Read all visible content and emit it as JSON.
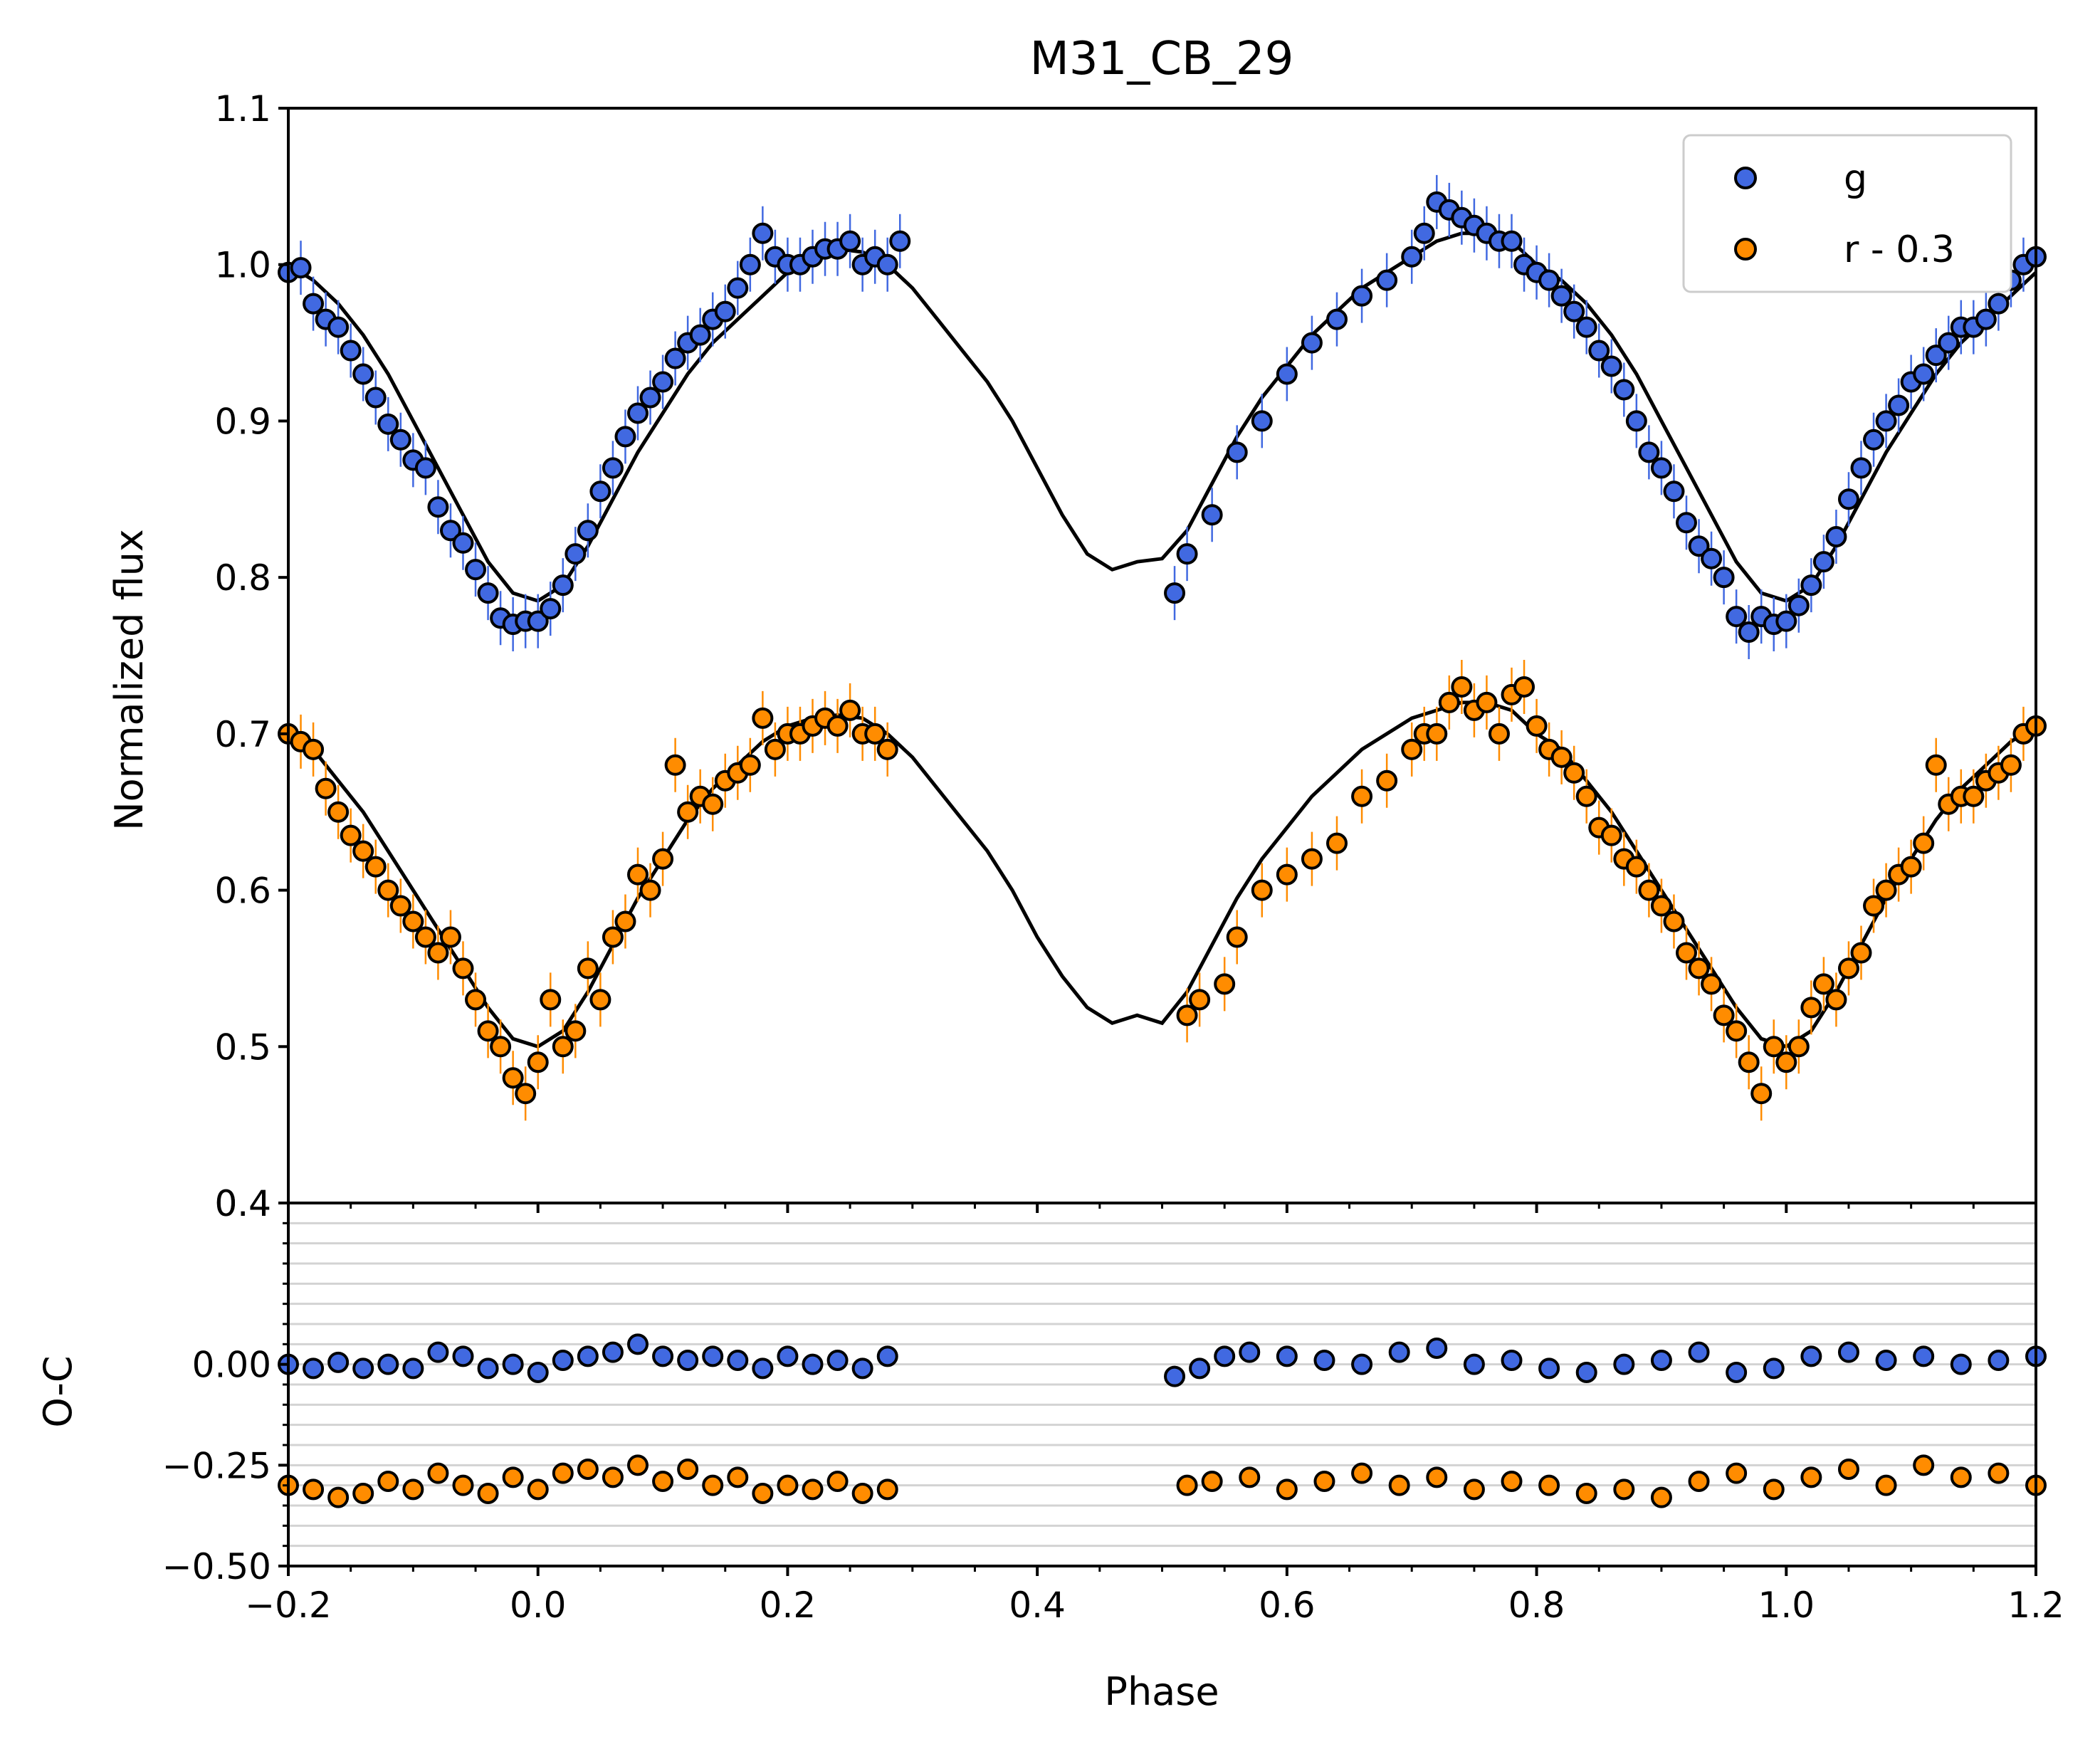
{
  "chart_data": [
    {
      "type": "scatter",
      "panel": "light-curve",
      "title": "M31_CB_29",
      "xlabel": "Phase",
      "ylabel": "Normalized flux",
      "xlim": [
        -0.2,
        1.2
      ],
      "ylim": [
        0.4,
        1.1
      ],
      "xticks": [
        "−0.2",
        "0.0",
        "0.2",
        "0.4",
        "0.6",
        "0.8",
        "1.0",
        "1.2"
      ],
      "yticks": [
        "0.4",
        "0.5",
        "0.6",
        "0.7",
        "0.8",
        "0.9",
        "1.0",
        "1.1"
      ],
      "legend": {
        "position": "top-right",
        "entries": [
          "g",
          "r - 0.3"
        ]
      },
      "series": [
        {
          "name": "g",
          "color": "#4169e1",
          "x": [
            -0.2,
            -0.19,
            -0.18,
            -0.17,
            -0.16,
            -0.15,
            -0.14,
            -0.13,
            -0.12,
            -0.11,
            -0.1,
            -0.09,
            -0.08,
            -0.07,
            -0.06,
            -0.05,
            -0.04,
            -0.03,
            -0.02,
            -0.01,
            0.0,
            0.01,
            0.02,
            0.03,
            0.04,
            0.05,
            0.06,
            0.07,
            0.08,
            0.09,
            0.1,
            0.11,
            0.12,
            0.13,
            0.14,
            0.15,
            0.16,
            0.17,
            0.18,
            0.19,
            0.2,
            0.21,
            0.22,
            0.23,
            0.24,
            0.25,
            0.26,
            0.27,
            0.28,
            0.29,
            0.51,
            0.52,
            0.54,
            0.56,
            0.58,
            0.6,
            0.62,
            0.64,
            0.66,
            0.68,
            0.7,
            0.71,
            0.72,
            0.73,
            0.74,
            0.75,
            0.76,
            0.77,
            0.78,
            0.79,
            0.8,
            0.81,
            0.82,
            0.83,
            0.84,
            0.85,
            0.86,
            0.87,
            0.88,
            0.89,
            0.9,
            0.91,
            0.92,
            0.93,
            0.94,
            0.95,
            0.96,
            0.97,
            0.98,
            0.99,
            1.0,
            1.01,
            1.02,
            1.03,
            1.04,
            1.05,
            1.06,
            1.07,
            1.08,
            1.09,
            1.1,
            1.11,
            1.12,
            1.13,
            1.14,
            1.15,
            1.16,
            1.17,
            1.18,
            1.19,
            1.2
          ],
          "y": [
            0.995,
            0.998,
            0.975,
            0.965,
            0.96,
            0.945,
            0.93,
            0.915,
            0.898,
            0.888,
            0.875,
            0.87,
            0.845,
            0.83,
            0.822,
            0.805,
            0.79,
            0.774,
            0.77,
            0.772,
            0.772,
            0.78,
            0.795,
            0.815,
            0.83,
            0.855,
            0.87,
            0.89,
            0.905,
            0.915,
            0.925,
            0.94,
            0.95,
            0.955,
            0.965,
            0.97,
            0.985,
            1.0,
            1.02,
            1.005,
            1.0,
            1.0,
            1.005,
            1.01,
            1.01,
            1.015,
            1.0,
            1.005,
            1.0,
            1.015,
            0.79,
            0.815,
            0.84,
            0.88,
            0.9,
            0.93,
            0.95,
            0.965,
            0.98,
            0.99,
            1.005,
            1.02,
            1.04,
            1.035,
            1.03,
            1.025,
            1.02,
            1.015,
            1.015,
            1.0,
            0.995,
            0.99,
            0.98,
            0.97,
            0.96,
            0.945,
            0.935,
            0.92,
            0.9,
            0.88,
            0.87,
            0.855,
            0.835,
            0.82,
            0.812,
            0.8,
            0.775,
            0.765,
            0.775,
            0.77,
            0.772,
            0.782,
            0.795,
            0.81,
            0.826,
            0.85,
            0.87,
            0.888,
            0.9,
            0.91,
            0.925,
            0.93,
            0.942,
            0.95,
            0.96,
            0.96,
            0.965,
            0.975,
            0.99,
            1.0,
            1.005
          ]
        },
        {
          "name": "r - 0.3",
          "color": "#ff8c00",
          "x": [
            -0.2,
            -0.19,
            -0.18,
            -0.17,
            -0.16,
            -0.15,
            -0.14,
            -0.13,
            -0.12,
            -0.11,
            -0.1,
            -0.09,
            -0.08,
            -0.07,
            -0.06,
            -0.05,
            -0.04,
            -0.03,
            -0.02,
            -0.01,
            0.0,
            0.01,
            0.02,
            0.03,
            0.04,
            0.05,
            0.06,
            0.07,
            0.08,
            0.09,
            0.1,
            0.11,
            0.12,
            0.13,
            0.14,
            0.15,
            0.16,
            0.17,
            0.18,
            0.19,
            0.2,
            0.21,
            0.22,
            0.23,
            0.24,
            0.25,
            0.26,
            0.27,
            0.28,
            0.52,
            0.53,
            0.55,
            0.56,
            0.58,
            0.6,
            0.62,
            0.64,
            0.66,
            0.68,
            0.7,
            0.71,
            0.72,
            0.73,
            0.74,
            0.75,
            0.76,
            0.77,
            0.78,
            0.79,
            0.8,
            0.81,
            0.82,
            0.83,
            0.84,
            0.85,
            0.86,
            0.87,
            0.88,
            0.89,
            0.9,
            0.91,
            0.92,
            0.93,
            0.94,
            0.95,
            0.96,
            0.97,
            0.98,
            0.99,
            1.0,
            1.01,
            1.02,
            1.03,
            1.04,
            1.05,
            1.06,
            1.07,
            1.08,
            1.09,
            1.1,
            1.11,
            1.12,
            1.13,
            1.14,
            1.15,
            1.16,
            1.17,
            1.18,
            1.19,
            1.2
          ],
          "y": [
            0.7,
            0.695,
            0.69,
            0.665,
            0.65,
            0.635,
            0.625,
            0.615,
            0.6,
            0.59,
            0.58,
            0.57,
            0.56,
            0.57,
            0.55,
            0.53,
            0.51,
            0.5,
            0.48,
            0.47,
            0.49,
            0.53,
            0.5,
            0.51,
            0.55,
            0.53,
            0.57,
            0.58,
            0.61,
            0.6,
            0.62,
            0.68,
            0.65,
            0.66,
            0.655,
            0.67,
            0.675,
            0.68,
            0.71,
            0.69,
            0.7,
            0.7,
            0.705,
            0.71,
            0.705,
            0.715,
            0.7,
            0.7,
            0.69,
            0.52,
            0.53,
            0.54,
            0.57,
            0.6,
            0.61,
            0.62,
            0.63,
            0.66,
            0.67,
            0.69,
            0.7,
            0.7,
            0.72,
            0.73,
            0.715,
            0.72,
            0.7,
            0.725,
            0.73,
            0.705,
            0.69,
            0.685,
            0.675,
            0.66,
            0.64,
            0.635,
            0.62,
            0.615,
            0.6,
            0.59,
            0.58,
            0.56,
            0.55,
            0.54,
            0.52,
            0.51,
            0.49,
            0.47,
            0.5,
            0.49,
            0.5,
            0.525,
            0.54,
            0.53,
            0.55,
            0.56,
            0.59,
            0.6,
            0.61,
            0.615,
            0.63,
            0.68,
            0.655,
            0.66,
            0.66,
            0.67,
            0.675,
            0.68,
            0.7,
            0.705
          ]
        }
      ],
      "model_curves": [
        {
          "x": [
            -0.2,
            -0.18,
            -0.16,
            -0.14,
            -0.12,
            -0.1,
            -0.08,
            -0.06,
            -0.04,
            -0.02,
            0.0,
            0.02,
            0.04,
            0.06,
            0.08,
            0.1,
            0.12,
            0.14,
            0.16,
            0.18,
            0.2,
            0.22,
            0.24,
            0.26,
            0.28,
            0.3,
            0.32,
            0.34,
            0.36,
            0.38,
            0.4,
            0.42,
            0.44,
            0.46,
            0.48,
            0.5,
            0.52,
            0.54,
            0.56,
            0.58,
            0.6,
            0.62,
            0.64,
            0.66,
            0.68,
            0.7,
            0.72,
            0.74,
            0.76,
            0.78,
            0.8,
            0.82,
            0.84,
            0.86,
            0.88,
            0.9,
            0.92,
            0.94,
            0.96,
            0.98,
            1.0,
            1.02,
            1.04,
            1.06,
            1.08,
            1.1,
            1.12,
            1.14,
            1.16,
            1.18,
            1.2
          ],
          "y": [
            1.0,
            0.99,
            0.975,
            0.955,
            0.93,
            0.9,
            0.87,
            0.84,
            0.81,
            0.79,
            0.785,
            0.795,
            0.82,
            0.85,
            0.88,
            0.905,
            0.93,
            0.95,
            0.965,
            0.98,
            0.995,
            1.005,
            1.01,
            1.008,
            1.0,
            0.985,
            0.965,
            0.945,
            0.925,
            0.9,
            0.87,
            0.84,
            0.815,
            0.805,
            0.81,
            0.812,
            0.83,
            0.86,
            0.89,
            0.915,
            0.935,
            0.955,
            0.97,
            0.985,
            0.995,
            1.005,
            1.015,
            1.02,
            1.02,
            1.015,
            1.0,
            0.99,
            0.975,
            0.955,
            0.93,
            0.9,
            0.87,
            0.84,
            0.81,
            0.79,
            0.785,
            0.795,
            0.82,
            0.85,
            0.88,
            0.905,
            0.93,
            0.95,
            0.965,
            0.98,
            0.995
          ]
        },
        {
          "x": [
            -0.2,
            -0.18,
            -0.16,
            -0.14,
            -0.12,
            -0.1,
            -0.08,
            -0.06,
            -0.04,
            -0.02,
            0.0,
            0.02,
            0.04,
            0.06,
            0.08,
            0.1,
            0.12,
            0.14,
            0.16,
            0.18,
            0.2,
            0.22,
            0.24,
            0.26,
            0.28,
            0.3,
            0.32,
            0.34,
            0.36,
            0.38,
            0.4,
            0.42,
            0.44,
            0.46,
            0.48,
            0.5,
            0.52,
            0.54,
            0.56,
            0.58,
            0.6,
            0.62,
            0.64,
            0.66,
            0.68,
            0.7,
            0.72,
            0.74,
            0.76,
            0.78,
            0.8,
            0.82,
            0.84,
            0.86,
            0.88,
            0.9,
            0.92,
            0.94,
            0.96,
            0.98,
            1.0,
            1.02,
            1.04,
            1.06,
            1.08,
            1.1,
            1.12,
            1.14,
            1.16,
            1.18,
            1.2
          ],
          "y": [
            0.7,
            0.69,
            0.67,
            0.65,
            0.625,
            0.6,
            0.575,
            0.55,
            0.525,
            0.505,
            0.5,
            0.51,
            0.535,
            0.565,
            0.595,
            0.62,
            0.645,
            0.665,
            0.68,
            0.695,
            0.705,
            0.71,
            0.712,
            0.71,
            0.7,
            0.685,
            0.665,
            0.645,
            0.625,
            0.6,
            0.57,
            0.545,
            0.525,
            0.515,
            0.52,
            0.515,
            0.535,
            0.565,
            0.595,
            0.62,
            0.64,
            0.66,
            0.675,
            0.69,
            0.7,
            0.71,
            0.715,
            0.72,
            0.72,
            0.715,
            0.7,
            0.69,
            0.67,
            0.65,
            0.625,
            0.6,
            0.575,
            0.55,
            0.525,
            0.505,
            0.5,
            0.51,
            0.535,
            0.565,
            0.595,
            0.62,
            0.645,
            0.665,
            0.68,
            0.695,
            0.705
          ]
        }
      ]
    },
    {
      "type": "scatter",
      "panel": "residuals",
      "xlabel": "Phase",
      "ylabel": "O-C",
      "xlim": [
        -0.2,
        1.2
      ],
      "ylim": [
        -0.5,
        0.4
      ],
      "grid": true,
      "xticks": [
        "−0.2",
        "0.0",
        "0.2",
        "0.4",
        "0.6",
        "0.8",
        "1.0",
        "1.2"
      ],
      "yticks": [
        "0.00",
        "−0.25",
        "−0.50"
      ],
      "series": [
        {
          "name": "g",
          "color": "#4169e1",
          "x": [
            -0.2,
            -0.18,
            -0.16,
            -0.14,
            -0.12,
            -0.1,
            -0.08,
            -0.06,
            -0.04,
            -0.02,
            0.0,
            0.02,
            0.04,
            0.06,
            0.08,
            0.1,
            0.12,
            0.14,
            0.16,
            0.18,
            0.2,
            0.22,
            0.24,
            0.26,
            0.28,
            0.51,
            0.53,
            0.55,
            0.57,
            0.6,
            0.63,
            0.66,
            0.69,
            0.72,
            0.75,
            0.78,
            0.81,
            0.84,
            0.87,
            0.9,
            0.93,
            0.96,
            0.99,
            1.02,
            1.05,
            1.08,
            1.11,
            1.14,
            1.17,
            1.2
          ],
          "y": [
            0.0,
            -0.01,
            0.005,
            -0.01,
            0.0,
            -0.01,
            0.03,
            0.02,
            -0.01,
            0.0,
            -0.02,
            0.01,
            0.02,
            0.03,
            0.05,
            0.02,
            0.01,
            0.02,
            0.01,
            -0.01,
            0.02,
            0.0,
            0.01,
            -0.01,
            0.02,
            -0.03,
            -0.01,
            0.02,
            0.03,
            0.02,
            0.01,
            0.0,
            0.03,
            0.04,
            0.0,
            0.01,
            -0.01,
            -0.02,
            0.0,
            0.01,
            0.03,
            -0.02,
            -0.01,
            0.02,
            0.03,
            0.01,
            0.02,
            0.0,
            0.01,
            0.02
          ]
        },
        {
          "name": "r - 0.3",
          "color": "#ff8c00",
          "x": [
            -0.2,
            -0.18,
            -0.16,
            -0.14,
            -0.12,
            -0.1,
            -0.08,
            -0.06,
            -0.04,
            -0.02,
            0.0,
            0.02,
            0.04,
            0.06,
            0.08,
            0.1,
            0.12,
            0.14,
            0.16,
            0.18,
            0.2,
            0.22,
            0.24,
            0.26,
            0.28,
            0.52,
            0.54,
            0.57,
            0.6,
            0.63,
            0.66,
            0.69,
            0.72,
            0.75,
            0.78,
            0.81,
            0.84,
            0.87,
            0.9,
            0.93,
            0.96,
            0.99,
            1.02,
            1.05,
            1.08,
            1.11,
            1.14,
            1.17,
            1.2
          ],
          "y": [
            -0.3,
            -0.31,
            -0.33,
            -0.32,
            -0.29,
            -0.31,
            -0.27,
            -0.3,
            -0.32,
            -0.28,
            -0.31,
            -0.27,
            -0.26,
            -0.28,
            -0.25,
            -0.29,
            -0.26,
            -0.3,
            -0.28,
            -0.32,
            -0.3,
            -0.31,
            -0.29,
            -0.32,
            -0.31,
            -0.3,
            -0.29,
            -0.28,
            -0.31,
            -0.29,
            -0.27,
            -0.3,
            -0.28,
            -0.31,
            -0.29,
            -0.3,
            -0.32,
            -0.31,
            -0.33,
            -0.29,
            -0.27,
            -0.31,
            -0.28,
            -0.26,
            -0.3,
            -0.25,
            -0.28,
            -0.27,
            -0.3
          ]
        }
      ]
    }
  ]
}
